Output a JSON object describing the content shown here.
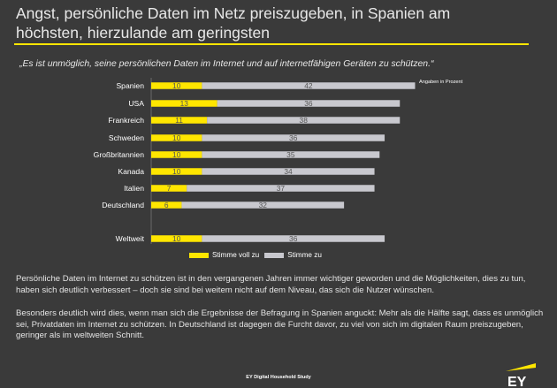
{
  "headline": "Angst, persönliche Daten im Netz preiszugeben, in Spanien am höchsten, hierzulande am geringsten",
  "quote": "„Es ist unmöglich, seine persönlichen Daten im Internet und auf internetfähigen Geräten zu schützen.“",
  "unit_note": "Angaben in Prozent",
  "legend": {
    "full_label": "Stimme voll zu",
    "partial_label": "Stimme zu"
  },
  "colors": {
    "background": "#3a3a3a",
    "full": "#ffe600",
    "partial": "#c8c8ce",
    "title_rule": "#ffe600"
  },
  "chart_data": {
    "type": "bar",
    "orientation": "horizontal",
    "stacked": true,
    "categories": [
      "Spanien",
      "USA",
      "Frankreich",
      "Schweden",
      "Großbritannien",
      "Kanada",
      "Italien",
      "Deutschland",
      "Weltweit"
    ],
    "series": [
      {
        "name": "Stimme voll zu",
        "color": "#ffe600",
        "values": [
          10,
          13,
          11,
          10,
          10,
          10,
          7,
          6,
          10
        ]
      },
      {
        "name": "Stimme zu",
        "color": "#c8c8ce",
        "values": [
          42,
          36,
          38,
          36,
          35,
          34,
          37,
          32,
          36
        ]
      }
    ],
    "xlabel": "",
    "ylabel": "",
    "grid": false,
    "legend_position": "bottom"
  },
  "body_paragraphs": [
    "Persönliche Daten im Internet zu schützen ist in den vergangenen Jahren immer wichtiger geworden und die Möglichkeiten, dies zu tun, haben sich deutlich verbessert – doch sie sind bei weitem nicht auf dem Niveau, das sich die Nutzer wünschen.",
    "Besonders deutlich wird dies, wenn man sich die Ergebnisse der Befragung in Spanien anguckt: Mehr als die Hälfte sagt, dass es unmöglich sei, Privatdaten im Internet zu schützen. In Deutschland ist dagegen die Furcht davor, zu viel von sich im digitalen Raum preiszugeben, geringer als im weltweiten Schnitt."
  ],
  "footer": "EY Digital Household Study",
  "logo_text": "EY"
}
